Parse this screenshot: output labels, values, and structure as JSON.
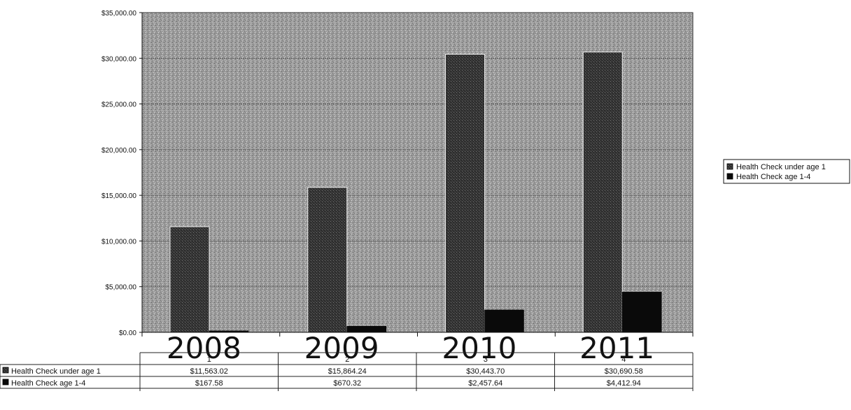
{
  "chart_data": {
    "type": "bar",
    "categories": [
      "1",
      "2",
      "3",
      "4"
    ],
    "year_labels": [
      "2008",
      "2009",
      "2010",
      "2011"
    ],
    "series": [
      {
        "name": "Health Check under age 1",
        "values": [
          11563.02,
          15864.24,
          30443.7,
          30690.58
        ],
        "value_labels": [
          "$11,563.02",
          "$15,864.24",
          "$30,443.70",
          "$30,690.58"
        ],
        "color": "#303030"
      },
      {
        "name": "Health Check age 1-4",
        "values": [
          167.58,
          670.32,
          2457.64,
          4412.94
        ],
        "value_labels": [
          "$167.58",
          "$670.32",
          "$2,457.64",
          "$4,412.94"
        ],
        "color": "#0a0a0a"
      }
    ],
    "ylim": [
      0,
      35000
    ],
    "y_ticks": [
      "$0.00",
      "$5,000.00",
      "$10,000.00",
      "$15,000.00",
      "$20,000.00",
      "$25,000.00",
      "$30,000.00",
      "$35,000.00"
    ],
    "grid": true,
    "legend": "right",
    "data_table": true,
    "plot_background": "#9a9a9a"
  }
}
